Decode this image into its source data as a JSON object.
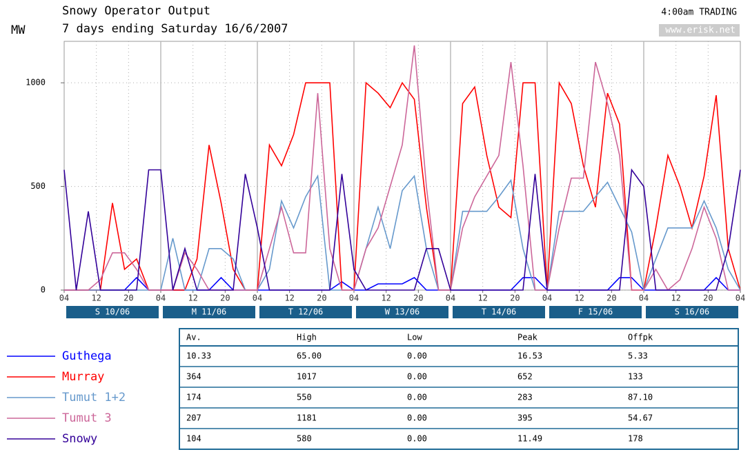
{
  "chart_data": {
    "type": "line",
    "title": "Snowy Operator Output",
    "subtitle": "7 days ending Saturday 16/6/2007",
    "ylabel": "MW",
    "status": "4:00am TRADING",
    "source": "www.erisk.net",
    "days": [
      "S 10/06",
      "M 11/06",
      "T 12/06",
      "W 13/06",
      "T 14/06",
      "F 15/06",
      "S 16/06"
    ],
    "x": [
      0,
      3,
      6,
      9,
      12,
      15,
      18,
      21,
      24,
      27,
      30,
      33,
      36,
      39,
      42,
      45,
      48,
      51,
      54,
      57,
      60,
      63,
      66,
      69,
      72,
      75,
      78,
      81,
      84,
      87,
      90,
      93,
      96,
      99,
      102,
      105,
      108,
      111,
      114,
      117,
      120,
      123,
      126,
      129,
      132,
      135,
      138,
      141,
      144,
      147,
      150,
      153,
      156,
      159,
      162,
      165,
      168
    ],
    "xlim": [
      0,
      168
    ],
    "xticks": [
      {
        "value": 0,
        "label": "04"
      },
      {
        "value": 8,
        "label": "12"
      },
      {
        "value": 16,
        "label": "20"
      },
      {
        "value": 24,
        "label": "04"
      },
      {
        "value": 32,
        "label": "12"
      },
      {
        "value": 40,
        "label": "20"
      },
      {
        "value": 48,
        "label": "04"
      },
      {
        "value": 56,
        "label": "12"
      },
      {
        "value": 64,
        "label": "20"
      },
      {
        "value": 72,
        "label": "04"
      },
      {
        "value": 80,
        "label": "12"
      },
      {
        "value": 88,
        "label": "20"
      },
      {
        "value": 96,
        "label": "04"
      },
      {
        "value": 104,
        "label": "12"
      },
      {
        "value": 112,
        "label": "20"
      },
      {
        "value": 120,
        "label": "04"
      },
      {
        "value": 128,
        "label": "12"
      },
      {
        "value": 136,
        "label": "20"
      },
      {
        "value": 144,
        "label": "04"
      },
      {
        "value": 152,
        "label": "12"
      },
      {
        "value": 160,
        "label": "20"
      },
      {
        "value": 168,
        "label": "04"
      }
    ],
    "ylim": [
      0,
      1200
    ],
    "yticks": [
      0,
      500,
      1000
    ],
    "grid": true,
    "series": [
      {
        "name": "Guthega",
        "color": "#0000ff",
        "values": [
          0,
          0,
          0,
          0,
          0,
          0,
          60,
          0,
          0,
          0,
          0,
          0,
          0,
          60,
          0,
          0,
          0,
          0,
          0,
          0,
          0,
          0,
          0,
          40,
          0,
          0,
          30,
          30,
          30,
          60,
          0,
          0,
          0,
          0,
          0,
          0,
          0,
          0,
          60,
          60,
          0,
          0,
          0,
          0,
          0,
          0,
          60,
          60,
          0,
          0,
          0,
          0,
          0,
          0,
          60,
          0,
          0
        ]
      },
      {
        "name": "Murray",
        "color": "#ff0000",
        "values": [
          0,
          0,
          0,
          0,
          420,
          100,
          150,
          0,
          0,
          0,
          0,
          150,
          700,
          420,
          100,
          0,
          0,
          700,
          600,
          750,
          1000,
          1000,
          1000,
          0,
          0,
          1000,
          950,
          880,
          1000,
          920,
          400,
          0,
          0,
          900,
          980,
          650,
          400,
          350,
          1000,
          1000,
          0,
          1000,
          900,
          600,
          400,
          950,
          800,
          0,
          0,
          300,
          650,
          500,
          300,
          550,
          940,
          200,
          0
        ]
      },
      {
        "name": "Tumut 1+2",
        "color": "#6699cc",
        "values": [
          0,
          0,
          0,
          0,
          0,
          0,
          0,
          0,
          0,
          250,
          0,
          0,
          200,
          200,
          150,
          0,
          0,
          100,
          430,
          300,
          450,
          550,
          0,
          0,
          0,
          200,
          400,
          200,
          480,
          550,
          200,
          0,
          0,
          380,
          380,
          380,
          450,
          530,
          200,
          0,
          0,
          380,
          380,
          380,
          450,
          520,
          400,
          280,
          0,
          150,
          300,
          300,
          300,
          430,
          300,
          100,
          0
        ]
      },
      {
        "name": "Tumut 3",
        "color": "#cc6699",
        "values": [
          0,
          0,
          0,
          50,
          180,
          180,
          100,
          0,
          0,
          0,
          180,
          100,
          0,
          0,
          0,
          0,
          0,
          200,
          400,
          180,
          180,
          950,
          200,
          0,
          0,
          200,
          300,
          500,
          700,
          1180,
          500,
          0,
          0,
          300,
          450,
          550,
          650,
          1100,
          600,
          0,
          0,
          300,
          540,
          540,
          1100,
          900,
          650,
          0,
          0,
          100,
          0,
          50,
          200,
          400,
          250,
          0,
          0
        ]
      },
      {
        "name": "Snowy",
        "color": "#330099",
        "values": [
          580,
          0,
          380,
          0,
          0,
          0,
          0,
          580,
          580,
          0,
          200,
          0,
          0,
          0,
          0,
          560,
          300,
          0,
          0,
          0,
          0,
          0,
          0,
          560,
          100,
          0,
          0,
          0,
          0,
          0,
          200,
          200,
          0,
          0,
          0,
          0,
          0,
          0,
          0,
          560,
          0,
          0,
          0,
          0,
          0,
          0,
          0,
          580,
          500,
          0,
          0,
          0,
          0,
          0,
          0,
          200,
          580
        ]
      }
    ]
  },
  "table": {
    "columns": [
      "Av.",
      "High",
      "Low",
      "Peak",
      "Offpk"
    ],
    "rows": [
      [
        "10.33",
        "65.00",
        "0.00",
        "16.53",
        "5.33"
      ],
      [
        "364",
        "1017",
        "0.00",
        "652",
        "133"
      ],
      [
        "174",
        "550",
        "0.00",
        "283",
        "87.10"
      ],
      [
        "207",
        "1181",
        "0.00",
        "395",
        "54.67"
      ],
      [
        "104",
        "580",
        "0.00",
        "11.49",
        "178"
      ]
    ]
  }
}
